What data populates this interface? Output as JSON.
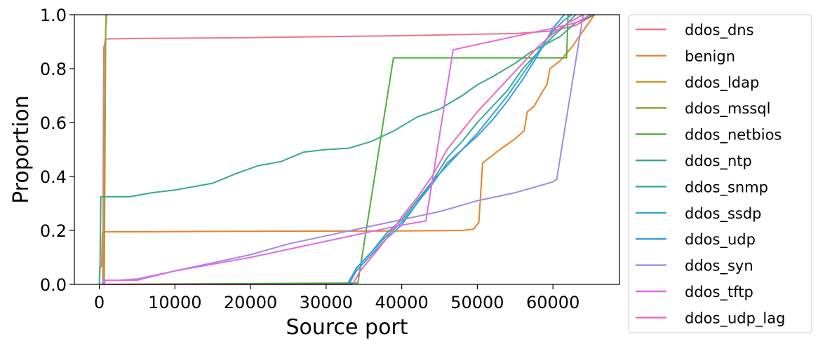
{
  "chart_data": {
    "type": "line",
    "title": "",
    "xlabel": "Source port",
    "ylabel": "Proportion",
    "xlim": [
      -3300,
      68800
    ],
    "ylim": [
      0,
      1.0
    ],
    "xticks": [
      0,
      10000,
      20000,
      30000,
      40000,
      50000,
      60000
    ],
    "yticks": [
      0.0,
      0.2,
      0.4,
      0.6,
      0.8,
      1.0
    ],
    "xtick_labels": [
      "0",
      "10000",
      "20000",
      "30000",
      "40000",
      "50000",
      "60000"
    ],
    "ytick_labels": [
      "0.0",
      "0.2",
      "0.4",
      "0.6",
      "0.8",
      "1.0"
    ],
    "grid": false,
    "legend_position": "outside-right",
    "series": [
      {
        "name": "ddos_dns",
        "color": "#f07488",
        "points": [
          [
            0,
            0
          ],
          [
            450,
            0
          ],
          [
            600,
            0.88
          ],
          [
            700,
            0.89
          ],
          [
            800,
            0.91
          ],
          [
            5000,
            0.912
          ],
          [
            20000,
            0.915
          ],
          [
            40000,
            0.922
          ],
          [
            55000,
            0.93
          ],
          [
            60000,
            0.94
          ],
          [
            63000,
            0.96
          ],
          [
            65500,
            1.0
          ]
        ]
      },
      {
        "name": "benign",
        "color": "#e7822d",
        "points": [
          [
            0,
            0
          ],
          [
            100,
            0.06
          ],
          [
            300,
            0.07
          ],
          [
            400,
            0.19
          ],
          [
            600,
            0.195
          ],
          [
            5000,
            0.195
          ],
          [
            20000,
            0.197
          ],
          [
            40000,
            0.198
          ],
          [
            48000,
            0.2
          ],
          [
            49500,
            0.205
          ],
          [
            50200,
            0.23
          ],
          [
            50700,
            0.45
          ],
          [
            53000,
            0.5
          ],
          [
            55000,
            0.54
          ],
          [
            56200,
            0.57
          ],
          [
            56600,
            0.64
          ],
          [
            57500,
            0.66
          ],
          [
            58500,
            0.71
          ],
          [
            59200,
            0.74
          ],
          [
            59600,
            0.8
          ],
          [
            61000,
            0.83
          ],
          [
            62500,
            0.88
          ],
          [
            64000,
            0.94
          ],
          [
            65500,
            1.0
          ]
        ]
      },
      {
        "name": "ddos_ldap",
        "color": "#c39a2f",
        "points": [
          [
            0,
            0
          ],
          [
            600,
            0
          ],
          [
            800,
            0.9
          ],
          [
            900,
            1.0
          ]
        ]
      },
      {
        "name": "ddos_mssql",
        "color": "#8fa63a",
        "points": [
          [
            0,
            0
          ],
          [
            650,
            0
          ],
          [
            850,
            0.95
          ],
          [
            1000,
            1.0
          ]
        ]
      },
      {
        "name": "ddos_netbios",
        "color": "#4cae3a",
        "points": [
          [
            0,
            0
          ],
          [
            34200,
            0.005
          ],
          [
            38900,
            0.84
          ],
          [
            61800,
            0.84
          ],
          [
            62000,
            1.0
          ]
        ]
      },
      {
        "name": "ddos_ntp",
        "color": "#37ab82",
        "points": [
          [
            0,
            0
          ],
          [
            100,
            0.08
          ],
          [
            200,
            0.325
          ],
          [
            4000,
            0.325
          ],
          [
            7000,
            0.34
          ],
          [
            10000,
            0.35
          ],
          [
            15000,
            0.375
          ],
          [
            18000,
            0.41
          ],
          [
            21000,
            0.44
          ],
          [
            24000,
            0.455
          ],
          [
            27000,
            0.49
          ],
          [
            30000,
            0.5
          ],
          [
            33000,
            0.505
          ],
          [
            36000,
            0.53
          ],
          [
            39000,
            0.57
          ],
          [
            42000,
            0.62
          ],
          [
            45000,
            0.65
          ],
          [
            48000,
            0.7
          ],
          [
            50000,
            0.74
          ],
          [
            52000,
            0.77
          ],
          [
            55000,
            0.82
          ],
          [
            57000,
            0.86
          ],
          [
            59000,
            0.89
          ],
          [
            61000,
            0.92
          ],
          [
            63000,
            0.97
          ],
          [
            65500,
            1.0
          ]
        ]
      },
      {
        "name": "ddos_snmp",
        "color": "#38ab9e",
        "points": [
          [
            0,
            0
          ],
          [
            33000,
            0
          ],
          [
            34000,
            0.06
          ],
          [
            36000,
            0.12
          ],
          [
            38000,
            0.19
          ],
          [
            40000,
            0.24
          ],
          [
            42000,
            0.31
          ],
          [
            44000,
            0.38
          ],
          [
            46000,
            0.47
          ],
          [
            48000,
            0.53
          ],
          [
            50000,
            0.6
          ],
          [
            52000,
            0.66
          ],
          [
            54000,
            0.72
          ],
          [
            56000,
            0.8
          ],
          [
            58000,
            0.86
          ],
          [
            60000,
            0.92
          ],
          [
            62000,
            0.97
          ],
          [
            63000,
            1.0
          ]
        ]
      },
      {
        "name": "ddos_ssdp",
        "color": "#3aa7c8",
        "points": [
          [
            0,
            0
          ],
          [
            33000,
            0
          ],
          [
            34000,
            0.05
          ],
          [
            36000,
            0.11
          ],
          [
            38000,
            0.17
          ],
          [
            40000,
            0.22
          ],
          [
            42000,
            0.3
          ],
          [
            44000,
            0.37
          ],
          [
            46000,
            0.45
          ],
          [
            48000,
            0.5
          ],
          [
            50000,
            0.56
          ],
          [
            52000,
            0.63
          ],
          [
            54000,
            0.7
          ],
          [
            56000,
            0.78
          ],
          [
            58000,
            0.86
          ],
          [
            60000,
            0.94
          ],
          [
            61500,
            0.98
          ],
          [
            62500,
            1.0
          ]
        ]
      },
      {
        "name": "ddos_udp",
        "color": "#3b9be6",
        "points": [
          [
            0,
            0
          ],
          [
            32800,
            0
          ],
          [
            34000,
            0.06
          ],
          [
            36000,
            0.12
          ],
          [
            38000,
            0.18
          ],
          [
            40000,
            0.23
          ],
          [
            42000,
            0.3
          ],
          [
            44000,
            0.38
          ],
          [
            46000,
            0.44
          ],
          [
            48000,
            0.5
          ],
          [
            50000,
            0.55
          ],
          [
            52000,
            0.61
          ],
          [
            54000,
            0.68
          ],
          [
            56000,
            0.76
          ],
          [
            58000,
            0.85
          ],
          [
            60000,
            0.95
          ],
          [
            61500,
            1.0
          ]
        ]
      },
      {
        "name": "ddos_syn",
        "color": "#a18ae6",
        "points": [
          [
            0,
            0
          ],
          [
            400,
            0
          ],
          [
            600,
            0.015
          ],
          [
            2500,
            0.015
          ],
          [
            5000,
            0.02
          ],
          [
            10000,
            0.05
          ],
          [
            15000,
            0.08
          ],
          [
            20000,
            0.11
          ],
          [
            25000,
            0.15
          ],
          [
            30000,
            0.18
          ],
          [
            35000,
            0.21
          ],
          [
            40000,
            0.24
          ],
          [
            45000,
            0.27
          ],
          [
            50000,
            0.31
          ],
          [
            55000,
            0.34
          ],
          [
            60000,
            0.38
          ],
          [
            60500,
            0.39
          ],
          [
            64000,
            1.0
          ]
        ]
      },
      {
        "name": "ddos_tftp",
        "color": "#e468e6",
        "points": [
          [
            0,
            0
          ],
          [
            600,
            0
          ],
          [
            800,
            0.015
          ],
          [
            5000,
            0.015
          ],
          [
            10000,
            0.05
          ],
          [
            20000,
            0.1
          ],
          [
            30000,
            0.16
          ],
          [
            35000,
            0.19
          ],
          [
            40000,
            0.22
          ],
          [
            43200,
            0.235
          ],
          [
            46800,
            0.87
          ],
          [
            55000,
            0.92
          ],
          [
            60000,
            0.95
          ],
          [
            63000,
            0.97
          ],
          [
            65000,
            1.0
          ]
        ]
      },
      {
        "name": "ddos_udp_lag",
        "color": "#f069b8",
        "points": [
          [
            0,
            0
          ],
          [
            33500,
            0
          ],
          [
            34500,
            0.05
          ],
          [
            36000,
            0.1
          ],
          [
            38000,
            0.17
          ],
          [
            40000,
            0.25
          ],
          [
            42000,
            0.32
          ],
          [
            44000,
            0.4
          ],
          [
            46000,
            0.5
          ],
          [
            48000,
            0.57
          ],
          [
            50000,
            0.64
          ],
          [
            52000,
            0.7
          ],
          [
            54000,
            0.76
          ],
          [
            56000,
            0.82
          ],
          [
            58000,
            0.88
          ],
          [
            60000,
            0.93
          ],
          [
            62000,
            0.97
          ],
          [
            64000,
            1.0
          ]
        ]
      }
    ]
  }
}
